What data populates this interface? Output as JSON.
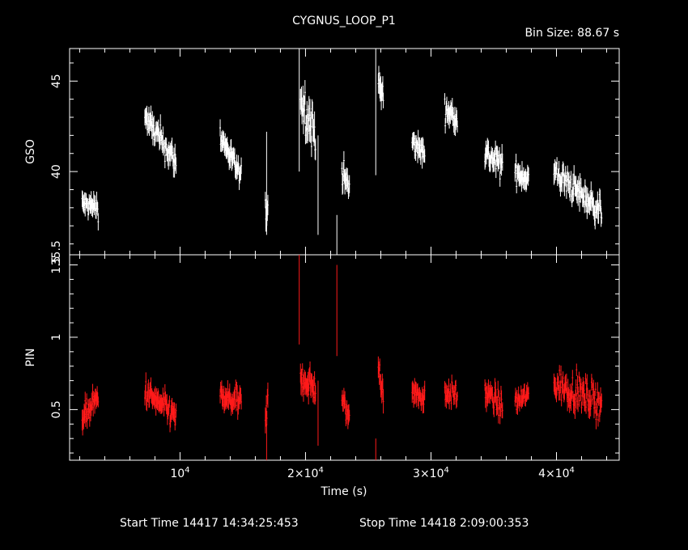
{
  "chart_data": {
    "type": "scatter",
    "title": "CYGNUS_LOOP_P1",
    "bin_size_label": "Bin Size: 88.67 s",
    "xlabel": "Time (s)",
    "x_tick_labels": [
      {
        "value": 10000,
        "mantissa": "10",
        "exp": "4",
        "prefix": ""
      },
      {
        "value": 20000,
        "mantissa": "2×10",
        "exp": "4",
        "prefix": ""
      },
      {
        "value": 30000,
        "mantissa": "3×10",
        "exp": "4",
        "prefix": ""
      },
      {
        "value": 40000,
        "mantissa": "4×10",
        "exp": "4",
        "prefix": ""
      }
    ],
    "xlim": [
      1200,
      45000
    ],
    "footer": {
      "start": "Start Time 14417 14:34:25:453",
      "stop": "Stop Time 14418  2:09:00:353"
    },
    "panels": [
      {
        "name": "GSO",
        "ylabel": "GSO",
        "ylim": [
          35.4,
          46.8
        ],
        "y_ticks": [
          {
            "value": 45,
            "label": "45"
          },
          {
            "value": 40,
            "label": "40"
          },
          {
            "value": 35.5,
            "label": "35.5"
          }
        ],
        "color": "#ffffff",
        "segments": [
          {
            "x0": 2200,
            "x1": 3500,
            "y0": 38.2,
            "y1": 38.0,
            "sd": 0.5,
            "err": 0.9
          },
          {
            "x0": 7200,
            "x1": 9700,
            "y0": 43.0,
            "y1": 40.5,
            "sd": 0.6,
            "err": 1.0
          },
          {
            "x0": 13200,
            "x1": 14900,
            "y0": 42.0,
            "y1": 39.6,
            "sd": 0.5,
            "err": 1.0
          },
          {
            "x0": 16800,
            "x1": 17000,
            "y0": 37.8,
            "y1": 38.2,
            "sd": 0.5,
            "err": 1.5
          },
          {
            "x0": 19600,
            "x1": 20800,
            "y0": 44.0,
            "y1": 42.0,
            "sd": 1.0,
            "err": 1.5
          },
          {
            "x0": 22900,
            "x1": 23500,
            "y0": 40.0,
            "y1": 39.0,
            "sd": 0.6,
            "err": 1.0
          },
          {
            "x0": 25800,
            "x1": 26200,
            "y0": 45.0,
            "y1": 44.0,
            "sd": 0.8,
            "err": 1.3
          },
          {
            "x0": 28500,
            "x1": 29500,
            "y0": 41.6,
            "y1": 41.0,
            "sd": 0.5,
            "err": 1.0
          },
          {
            "x0": 31100,
            "x1": 32100,
            "y0": 43.4,
            "y1": 43.0,
            "sd": 0.5,
            "err": 1.0
          },
          {
            "x0": 34300,
            "x1": 35700,
            "y0": 41.0,
            "y1": 40.3,
            "sd": 0.6,
            "err": 1.0
          },
          {
            "x0": 36700,
            "x1": 37800,
            "y0": 40.0,
            "y1": 39.6,
            "sd": 0.5,
            "err": 1.0
          },
          {
            "x0": 39800,
            "x1": 43600,
            "y0": 40.0,
            "y1": 37.8,
            "sd": 0.6,
            "err": 1.0
          }
        ],
        "spikes": [
          {
            "x": 19500,
            "y0": 46.8,
            "y1": 40.0
          },
          {
            "x": 21000,
            "y0": 42.0,
            "y1": 36.5
          },
          {
            "x": 22500,
            "y0": 37.6,
            "y1": 35.4
          },
          {
            "x": 25600,
            "y0": 46.8,
            "y1": 39.8
          },
          {
            "x": 16900,
            "y0": 42.2,
            "y1": 36.5
          }
        ]
      },
      {
        "name": "PIN",
        "ylabel": "PIN",
        "ylim": [
          0.15,
          1.57
        ],
        "y_ticks": [
          {
            "value": 1.5,
            "label": "1.5"
          },
          {
            "value": 1.0,
            "label": "1"
          },
          {
            "value": 0.5,
            "label": "0.5"
          }
        ],
        "color": "#ff1a1a",
        "segments": [
          {
            "x0": 2200,
            "x1": 3500,
            "y0": 0.45,
            "y1": 0.58,
            "sd": 0.07,
            "err": 0.12
          },
          {
            "x0": 7200,
            "x1": 9700,
            "y0": 0.62,
            "y1": 0.45,
            "sd": 0.07,
            "err": 0.12
          },
          {
            "x0": 13200,
            "x1": 14900,
            "y0": 0.58,
            "y1": 0.55,
            "sd": 0.07,
            "err": 0.12
          },
          {
            "x0": 16800,
            "x1": 17000,
            "y0": 0.4,
            "y1": 0.55,
            "sd": 0.08,
            "err": 0.15
          },
          {
            "x0": 19600,
            "x1": 20800,
            "y0": 0.72,
            "y1": 0.65,
            "sd": 0.08,
            "err": 0.14
          },
          {
            "x0": 22900,
            "x1": 23500,
            "y0": 0.55,
            "y1": 0.45,
            "sd": 0.07,
            "err": 0.12
          },
          {
            "x0": 25800,
            "x1": 26200,
            "y0": 0.8,
            "y1": 0.65,
            "sd": 0.09,
            "err": 0.14
          },
          {
            "x0": 28500,
            "x1": 29500,
            "y0": 0.62,
            "y1": 0.58,
            "sd": 0.07,
            "err": 0.12
          },
          {
            "x0": 31100,
            "x1": 32100,
            "y0": 0.62,
            "y1": 0.6,
            "sd": 0.06,
            "err": 0.1
          },
          {
            "x0": 34300,
            "x1": 35700,
            "y0": 0.62,
            "y1": 0.52,
            "sd": 0.07,
            "err": 0.12
          },
          {
            "x0": 36700,
            "x1": 37800,
            "y0": 0.55,
            "y1": 0.6,
            "sd": 0.06,
            "err": 0.1
          },
          {
            "x0": 39800,
            "x1": 43600,
            "y0": 0.68,
            "y1": 0.55,
            "sd": 0.09,
            "err": 0.12
          }
        ],
        "spikes": [
          {
            "x": 19500,
            "y0": 1.57,
            "y1": 0.95
          },
          {
            "x": 21000,
            "y0": 0.7,
            "y1": 0.25
          },
          {
            "x": 22500,
            "y0": 1.5,
            "y1": 0.87
          },
          {
            "x": 25600,
            "y0": 0.3,
            "y1": 0.15
          },
          {
            "x": 16900,
            "y0": 0.4,
            "y1": 0.15
          }
        ]
      }
    ]
  }
}
